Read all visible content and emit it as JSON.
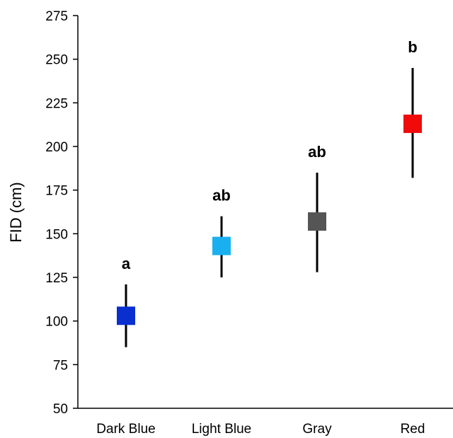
{
  "chart_data": {
    "type": "scatter",
    "ylabel": "FID (cm)",
    "ylim": [
      50,
      275
    ],
    "yticks": [
      50,
      75,
      100,
      125,
      150,
      175,
      200,
      225,
      250,
      275
    ],
    "categories": [
      "Dark Blue",
      "Light Blue",
      "Gray",
      "Red"
    ],
    "points": [
      {
        "category": "Dark Blue",
        "value": 103,
        "error_low": 85,
        "error_high": 121,
        "letter": "a",
        "color": "#0a2fcf"
      },
      {
        "category": "Light Blue",
        "value": 143,
        "error_low": 125,
        "error_high": 160,
        "letter": "ab",
        "color": "#1ab0ef"
      },
      {
        "category": "Gray",
        "value": 157,
        "error_low": 128,
        "error_high": 185,
        "letter": "ab",
        "color": "#555555"
      },
      {
        "category": "Red",
        "value": 213,
        "error_low": 182,
        "error_high": 245,
        "letter": "b",
        "color": "#f00a0a"
      }
    ],
    "grid": false
  }
}
